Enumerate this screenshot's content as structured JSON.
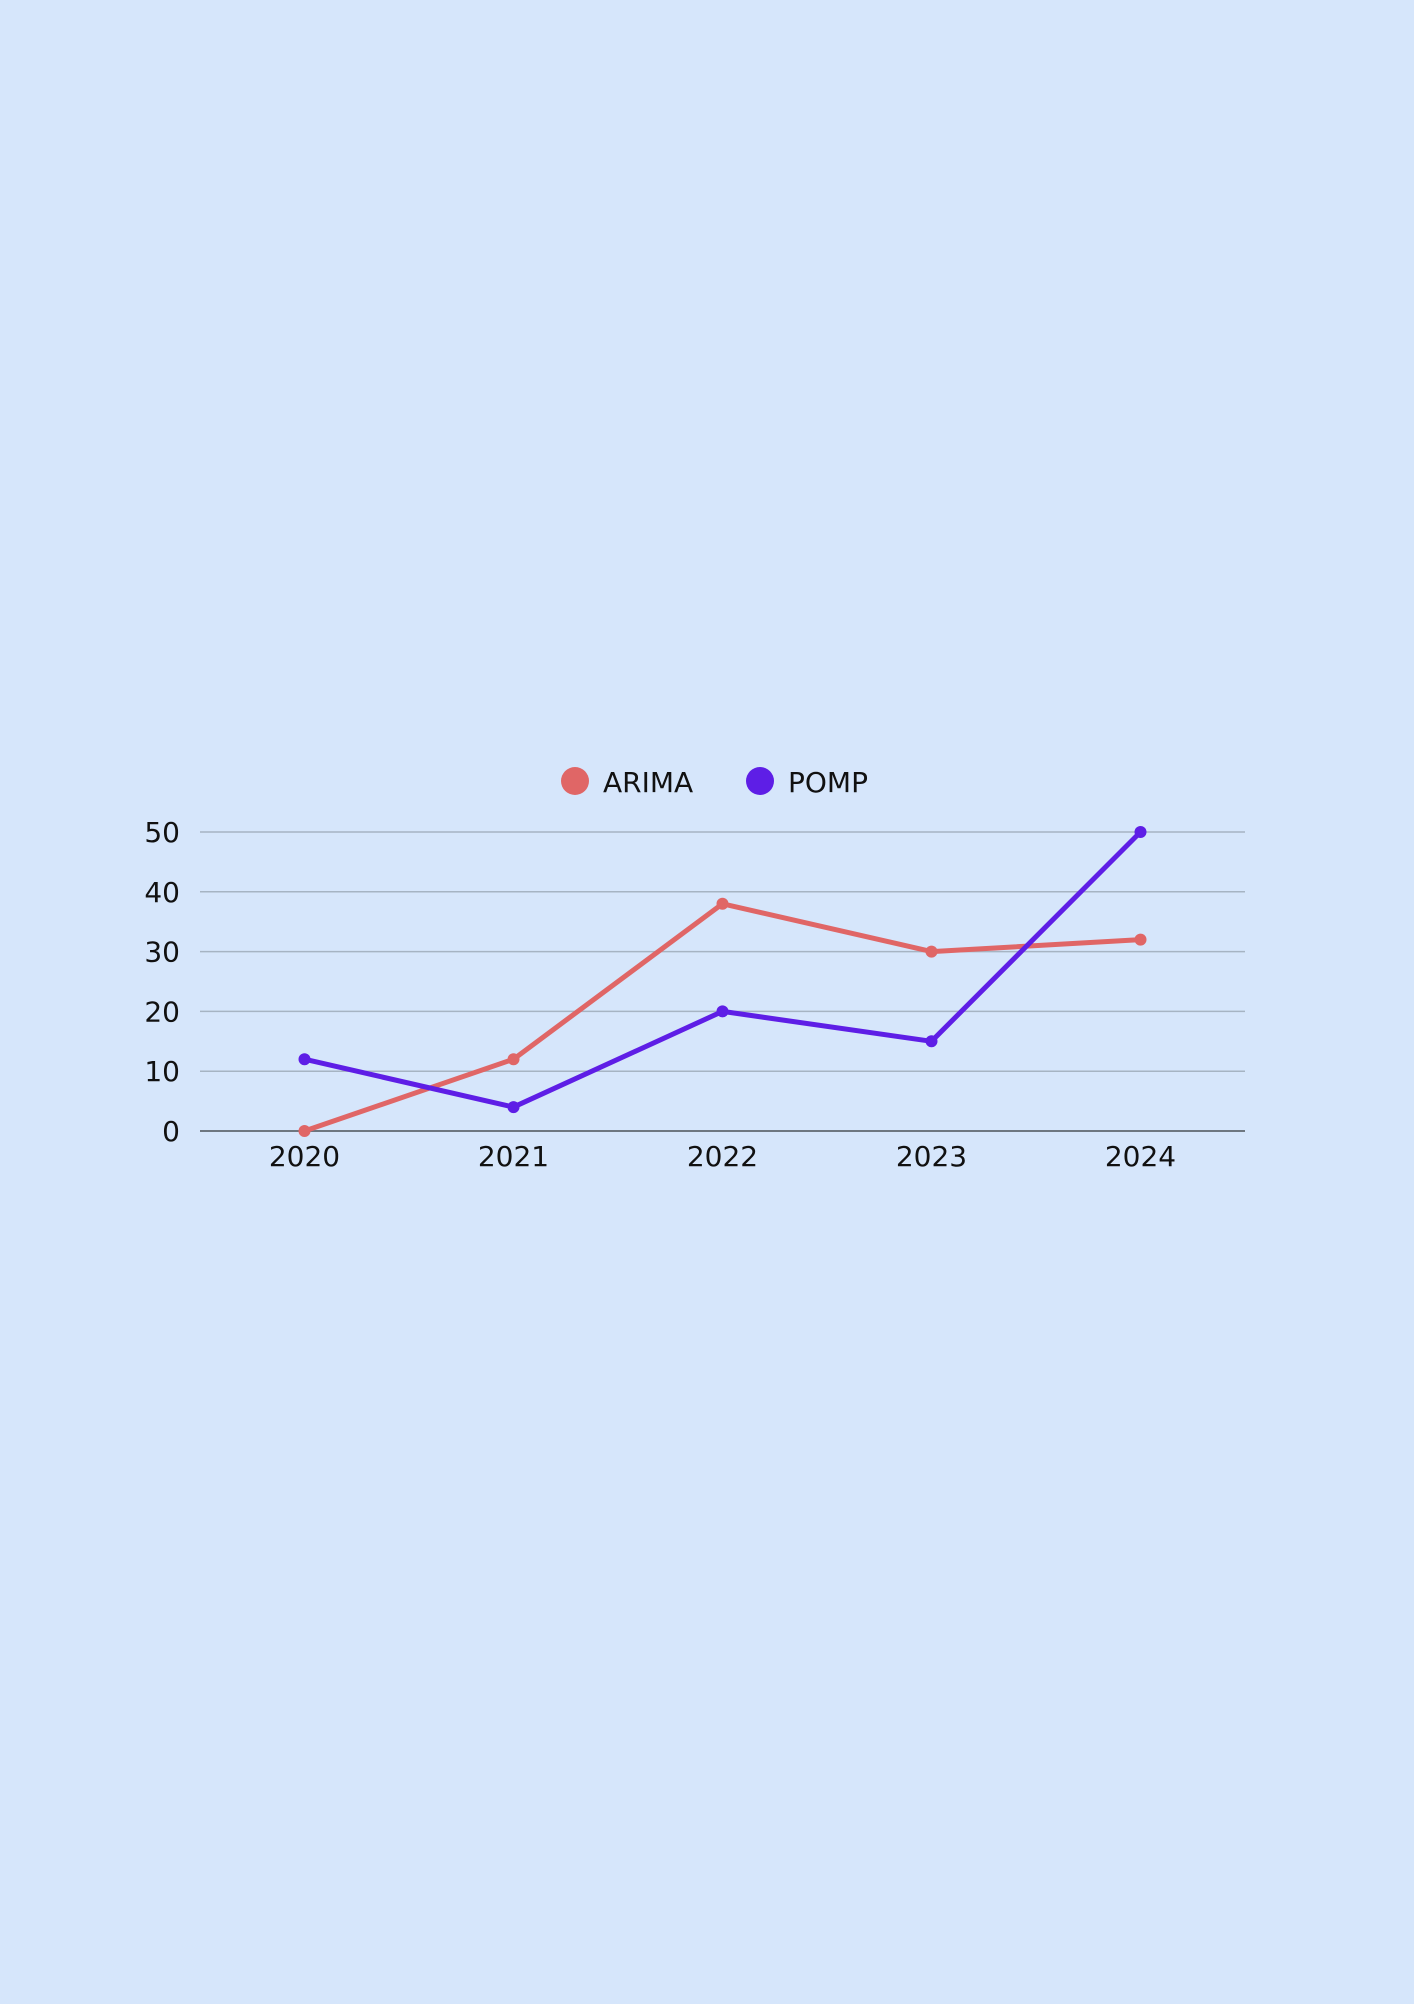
{
  "chart_data": {
    "type": "line",
    "title": "",
    "xlabel": "",
    "ylabel": "",
    "categories": [
      "2020",
      "2021",
      "2022",
      "2023",
      "2024"
    ],
    "series": [
      {
        "name": "ARIMA",
        "color": "#e06666",
        "values": [
          0,
          12,
          38,
          30,
          32
        ]
      },
      {
        "name": "POMP",
        "color": "#5e1ee6",
        "values": [
          12,
          4,
          20,
          15,
          50
        ]
      }
    ],
    "ylim": [
      0,
      50
    ],
    "yticks": [
      0,
      10,
      20,
      30,
      40,
      50
    ],
    "grid": true,
    "legend": "top-center",
    "colors": {
      "background": "#d6e6fb",
      "grid": "#a6b4c3",
      "axis": "#6e7780"
    }
  }
}
